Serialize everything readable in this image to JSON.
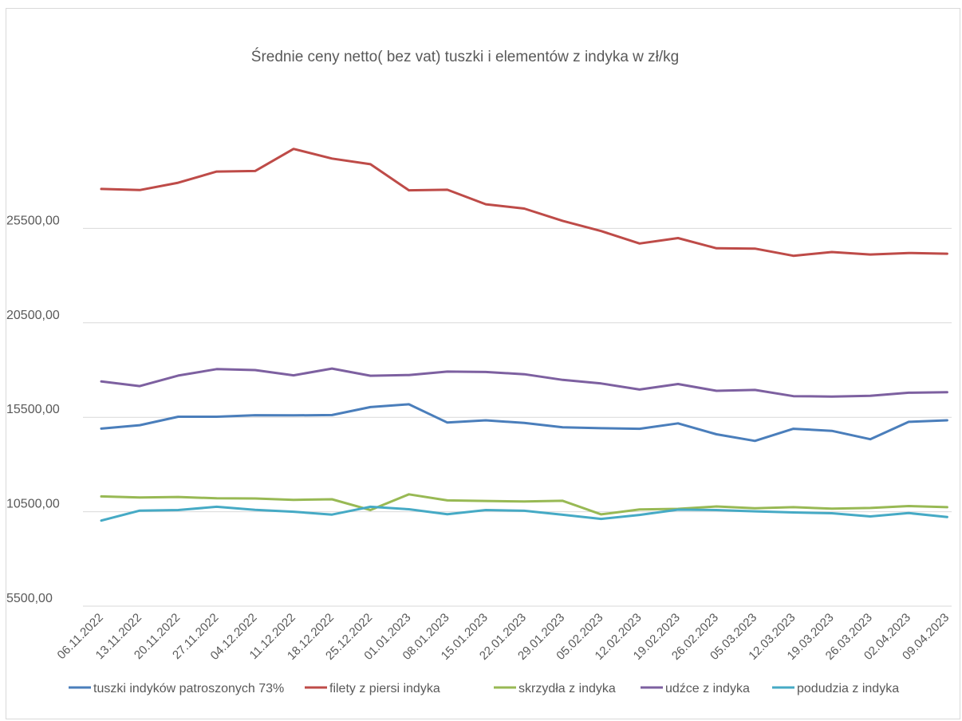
{
  "chart_data": {
    "type": "line",
    "title": "Średnie ceny netto( bez vat) tuszki i elementów z indyka w zł/kg",
    "xlabel": "",
    "ylabel": "",
    "ylim": [
      5500,
      30500
    ],
    "y_ticks": [
      "5500,00",
      "10500,00",
      "15500,00",
      "20500,00",
      "25500,00"
    ],
    "y_tick_values": [
      5500,
      10500,
      15500,
      20500,
      25500
    ],
    "grid": "horizontal",
    "legend_position": "bottom",
    "x": [
      "06.11.2022",
      "13.11.2022",
      "20.11.2022",
      "27.11.2022",
      "04.12.2022",
      "11.12.2022",
      "18.12.2022",
      "25.12.2022",
      "01.01.2023",
      "08.01.2023",
      "15.01.2023",
      "22.01.2023",
      "29.01.2023",
      "05.02.2023",
      "12.02.2023",
      "19.02.2023",
      "26.02.2023",
      "05.03.2023",
      "12.03.2023",
      "19.03.2023",
      "26.03.2023",
      "02.04.2023",
      "09.04.2023"
    ],
    "series": [
      {
        "name": "tuszki indyków patroszonych 73%",
        "color": "#4a7ebb",
        "values": [
          14900,
          15080,
          15530,
          15530,
          15610,
          15600,
          15620,
          16040,
          16190,
          15220,
          15340,
          15200,
          14970,
          14920,
          14890,
          15180,
          14600,
          14250,
          14890,
          14780,
          14340,
          15260,
          15340
        ]
      },
      {
        "name": "filety z piersi indyka",
        "color": "#be4b48",
        "values": [
          27590,
          27530,
          27920,
          28510,
          28540,
          29710,
          29200,
          28900,
          27520,
          27550,
          26780,
          26550,
          25900,
          25360,
          24700,
          24990,
          24450,
          24430,
          24050,
          24250,
          24120,
          24200,
          24160
        ]
      },
      {
        "name": "skrzydła z indyka",
        "color": "#98b954",
        "values": [
          11310,
          11250,
          11280,
          11210,
          11200,
          11130,
          11160,
          10590,
          11420,
          11100,
          11070,
          11040,
          11080,
          10360,
          10620,
          10650,
          10780,
          10680,
          10740,
          10660,
          10700,
          10800,
          10740
        ]
      },
      {
        "name": "udźce z indyka",
        "color": "#7d60a0",
        "values": [
          17400,
          17150,
          17710,
          18050,
          18000,
          17720,
          18080,
          17700,
          17740,
          17920,
          17900,
          17780,
          17480,
          17290,
          16970,
          17260,
          16900,
          16950,
          16620,
          16600,
          16640,
          16800,
          16830
        ]
      },
      {
        "name": "podudzia z indyka",
        "color": "#46aac5",
        "values": [
          10030,
          10560,
          10590,
          10760,
          10600,
          10500,
          10350,
          10760,
          10630,
          10370,
          10590,
          10550,
          10340,
          10120,
          10330,
          10610,
          10590,
          10520,
          10460,
          10420,
          10250,
          10430,
          10220
        ]
      }
    ]
  }
}
